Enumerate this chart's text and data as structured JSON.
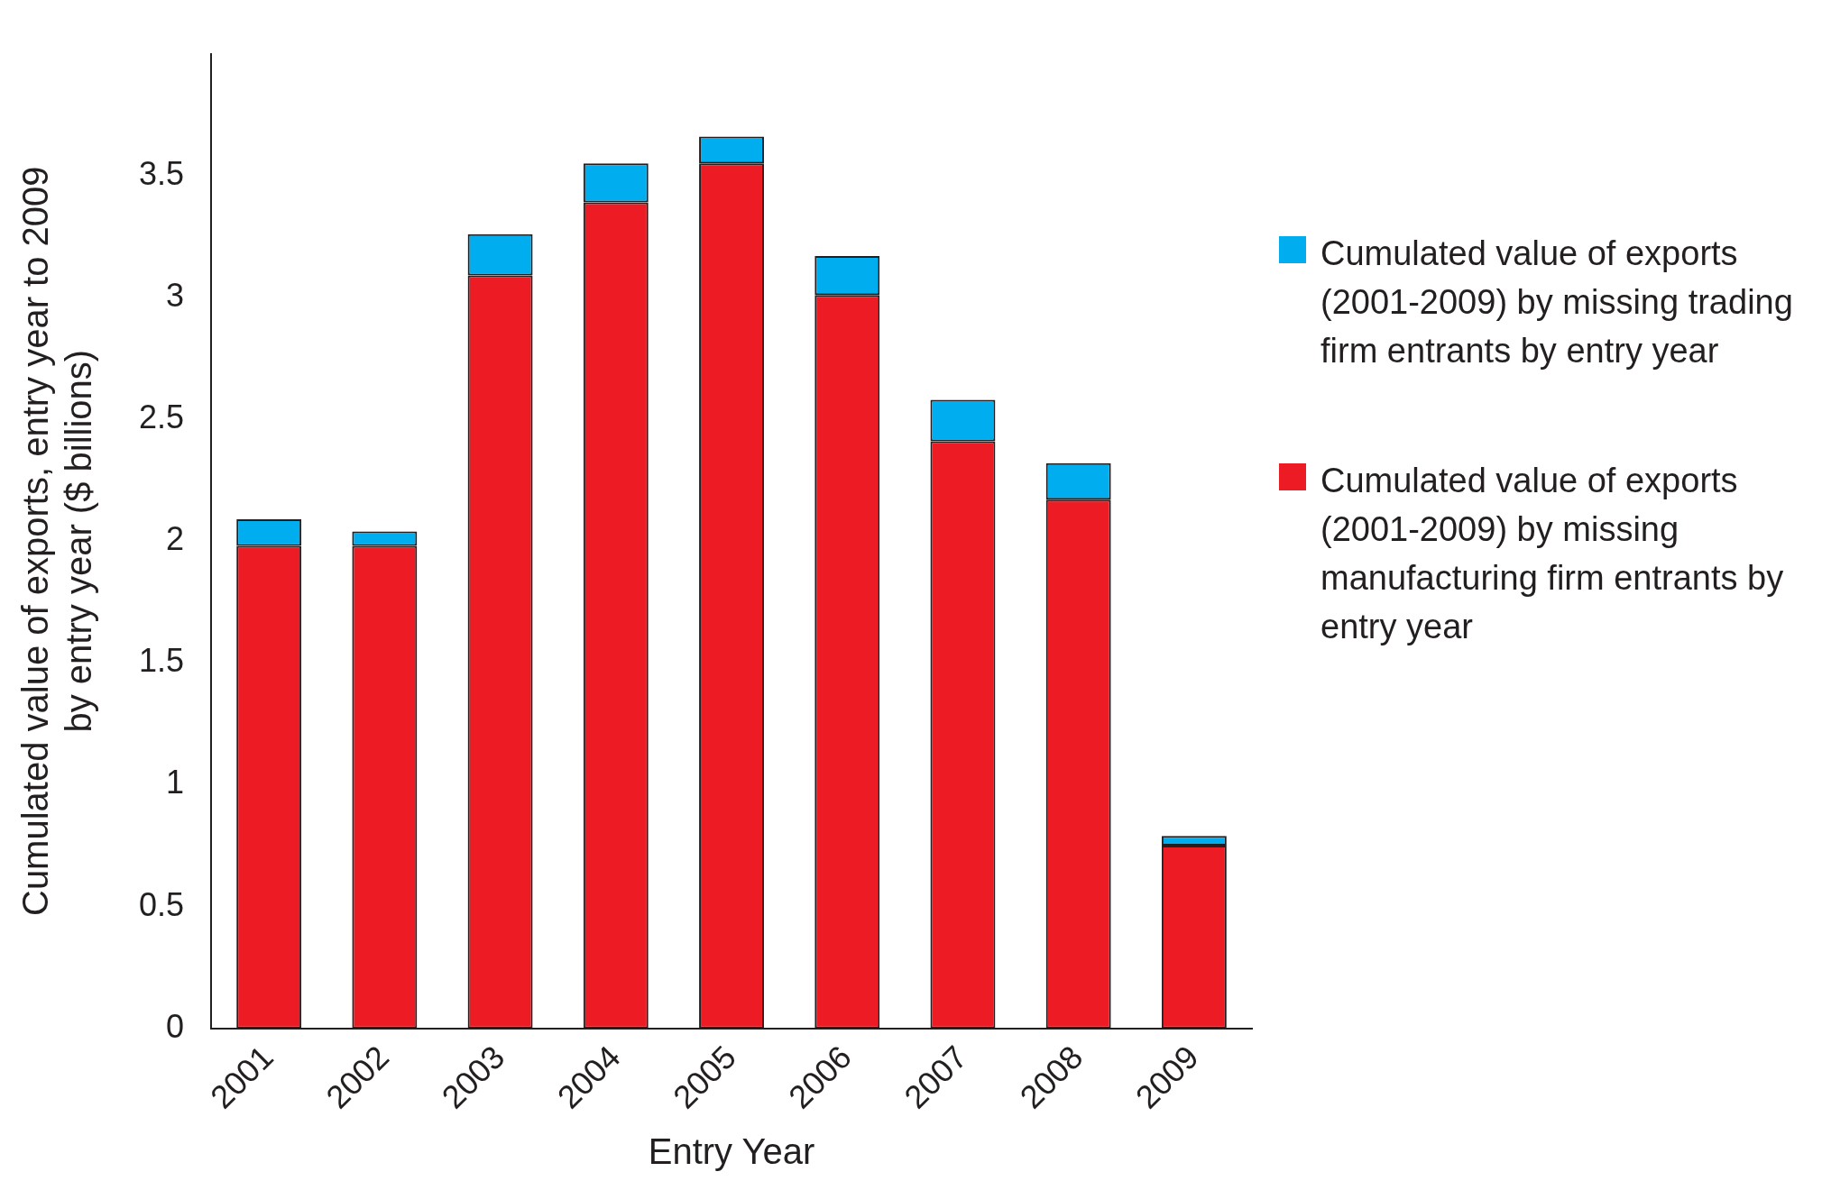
{
  "chart_data": {
    "type": "bar",
    "stacked": true,
    "xlabel": "Entry Year",
    "ylabel": "Cumulated value of exports, entry year to 2009 by entry year ($ billions)",
    "categories": [
      "2001",
      "2002",
      "2003",
      "2004",
      "2005",
      "2006",
      "2007",
      "2008",
      "2009"
    ],
    "series": [
      {
        "name": "Cumulated value of exports (2001-2009) by missing manufacturing firm entrants by entry year",
        "color": "#ed1c24",
        "values": [
          1.98,
          1.98,
          3.09,
          3.39,
          3.55,
          3.01,
          2.41,
          2.17,
          0.75
        ]
      },
      {
        "name": "Cumulated value of exports (2001-2009) by missing trading firm entrants by entry year",
        "color": "#00aeef",
        "values": [
          0.11,
          0.06,
          0.17,
          0.16,
          0.11,
          0.16,
          0.17,
          0.15,
          0.04
        ]
      }
    ],
    "ylim": [
      0,
      4
    ],
    "yticks": [
      0,
      0.5,
      1,
      1.5,
      2,
      2.5,
      3,
      3.5
    ],
    "grid": false,
    "legend": "right"
  }
}
